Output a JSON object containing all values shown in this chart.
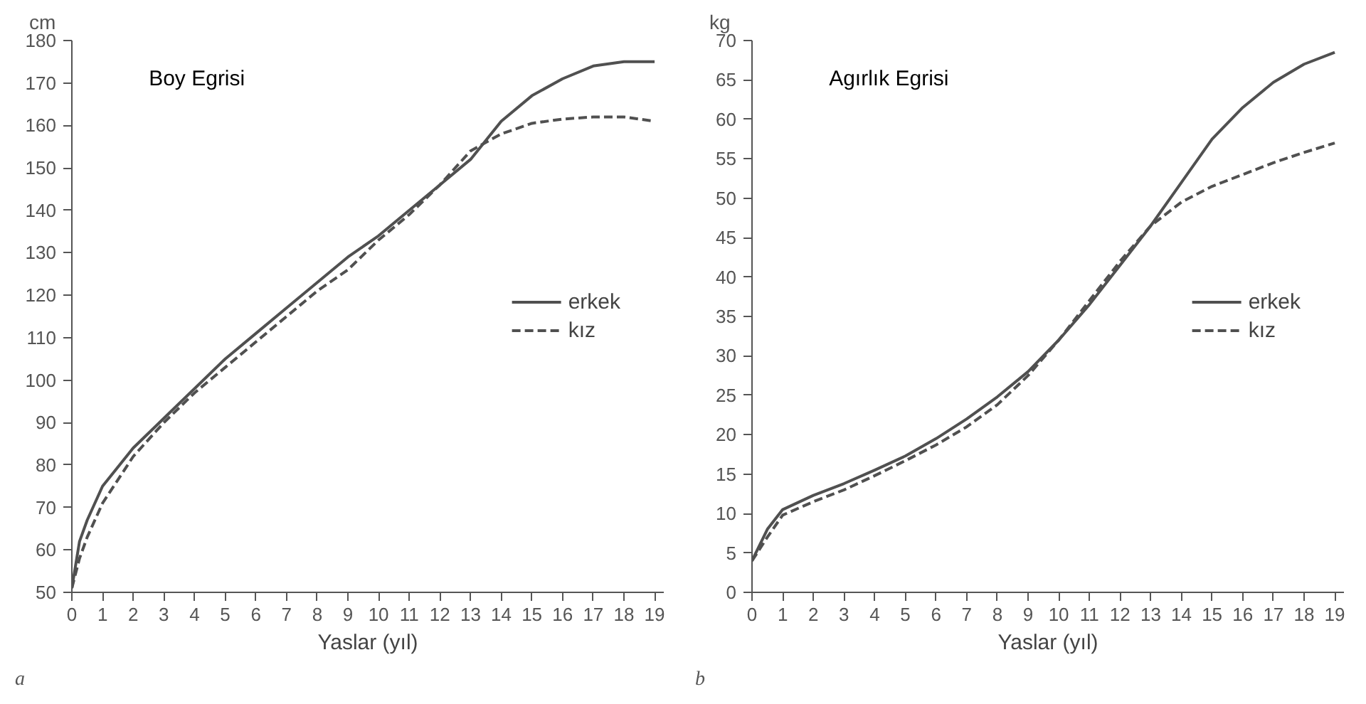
{
  "chart_data": [
    {
      "type": "line",
      "title": "Boy Egrisi",
      "xlabel": "Yaslar (yıl)",
      "ylabel": "cm",
      "annotations": [
        "a"
      ],
      "xlim": [
        0,
        19.3
      ],
      "xticks": [
        0,
        1,
        2,
        3,
        4,
        5,
        6,
        7,
        8,
        9,
        10,
        11,
        12,
        13,
        14,
        15,
        16,
        17,
        18,
        19
      ],
      "ylim": [
        50,
        180
      ],
      "yticks": [
        50,
        60,
        70,
        80,
        90,
        100,
        110,
        120,
        130,
        140,
        150,
        160,
        170,
        180
      ],
      "grid": false,
      "legend": "right",
      "series": [
        {
          "name": "erkek",
          "color": "#505050",
          "line_style": "solid",
          "x": [
            0,
            0.25,
            0.5,
            1,
            2,
            3,
            4,
            5,
            6,
            7,
            8,
            9,
            10,
            11,
            12,
            13,
            14,
            15,
            16,
            17,
            18,
            19
          ],
          "values": [
            51,
            62,
            67,
            75,
            84,
            91,
            98,
            105,
            111,
            117,
            123,
            129,
            134,
            140,
            146,
            152,
            161,
            167,
            171,
            174,
            175,
            175
          ]
        },
        {
          "name": "kız",
          "color": "#505050",
          "line_style": "dashed",
          "x": [
            0,
            0.25,
            0.5,
            1,
            2,
            3,
            4,
            5,
            6,
            7,
            8,
            9,
            10,
            11,
            12,
            13,
            14,
            15,
            16,
            17,
            18,
            19
          ],
          "values": [
            51,
            58,
            63,
            71,
            82,
            90,
            97,
            103,
            109,
            115,
            121,
            126,
            133,
            139,
            146,
            154,
            158,
            160.5,
            161.5,
            162,
            162,
            161
          ]
        }
      ]
    },
    {
      "type": "line",
      "title": "Agırlık Egrisi",
      "xlabel": "Yaslar (yıl)",
      "ylabel": "kg",
      "annotations": [
        "b"
      ],
      "xlim": [
        0,
        19.3
      ],
      "xticks": [
        0,
        1,
        2,
        3,
        4,
        5,
        6,
        7,
        8,
        9,
        10,
        11,
        12,
        13,
        14,
        15,
        16,
        17,
        18,
        19
      ],
      "ylim": [
        0,
        70
      ],
      "yticks": [
        0,
        5,
        10,
        15,
        20,
        25,
        30,
        35,
        40,
        45,
        50,
        55,
        60,
        65,
        70
      ],
      "grid": false,
      "legend": "right",
      "series": [
        {
          "name": "erkek",
          "color": "#505050",
          "line_style": "solid",
          "x": [
            0,
            0.5,
            1,
            2,
            3,
            4,
            5,
            6,
            7,
            8,
            9,
            10,
            11,
            12,
            13,
            14,
            15,
            16,
            17,
            18,
            19
          ],
          "values": [
            4,
            8,
            10.5,
            12.3,
            13.8,
            15.5,
            17.3,
            19.5,
            22,
            24.8,
            28,
            32,
            36.5,
            41.5,
            46.5,
            52,
            57.5,
            61.5,
            64.7,
            67,
            68.5
          ]
        },
        {
          "name": "kız",
          "color": "#505050",
          "line_style": "dashed",
          "x": [
            0,
            0.5,
            1,
            2,
            3,
            4,
            5,
            6,
            7,
            8,
            9,
            10,
            11,
            12,
            13,
            14,
            15,
            16,
            17,
            18,
            19
          ],
          "values": [
            4,
            7,
            9.8,
            11.5,
            13,
            14.8,
            16.7,
            18.7,
            21,
            23.8,
            27.5,
            32,
            37,
            42,
            46.5,
            49.5,
            51.5,
            53,
            54.5,
            55.8,
            57
          ]
        }
      ]
    }
  ]
}
